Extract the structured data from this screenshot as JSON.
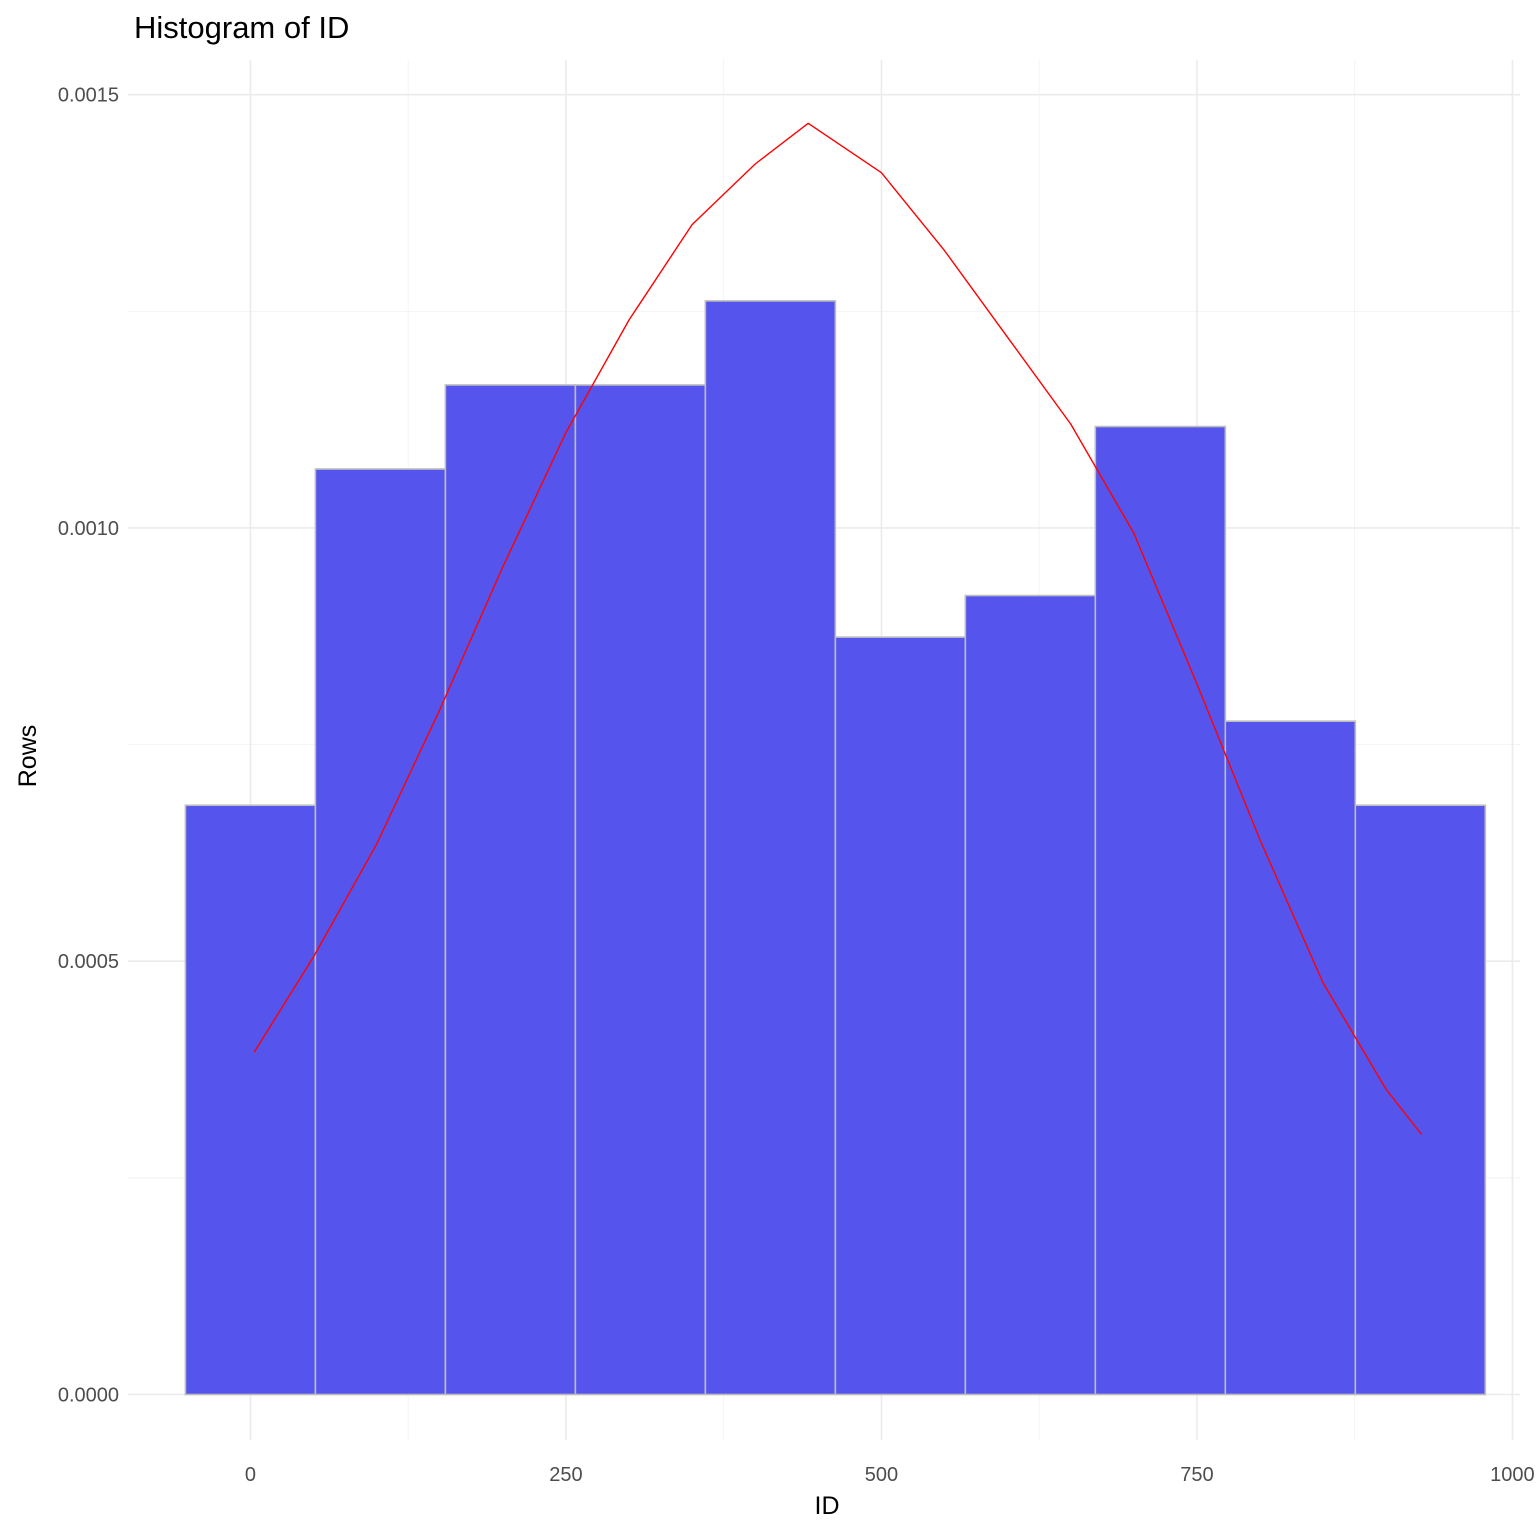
{
  "chart_data": {
    "type": "bar",
    "title": "Histogram of ID",
    "xlabel": "ID",
    "ylabel": "Rows",
    "xlim": [
      -97,
      1006
    ],
    "ylim": [
      -5.25e-05,
      0.00154
    ],
    "x_ticks": [
      0,
      250,
      500,
      750,
      1000
    ],
    "x_tick_labels": [
      "0",
      "250",
      "500",
      "750",
      "1000"
    ],
    "y_ticks": [
      0,
      0.0005,
      0.001,
      0.0015
    ],
    "y_tick_labels": [
      "0.0000",
      "0.0005",
      "0.0010",
      "0.0015"
    ],
    "grid": true,
    "bins": [
      {
        "x0": -51.5,
        "x1": 51.5,
        "density": 0.00068
      },
      {
        "x0": 51.5,
        "x1": 154.5,
        "density": 0.001068
      },
      {
        "x0": 154.5,
        "x1": 257.5,
        "density": 0.001165
      },
      {
        "x0": 257.5,
        "x1": 360.5,
        "density": 0.001165
      },
      {
        "x0": 360.5,
        "x1": 463.5,
        "density": 0.001262
      },
      {
        "x0": 463.5,
        "x1": 566.5,
        "density": 0.000874
      },
      {
        "x0": 566.5,
        "x1": 669.5,
        "density": 0.000922
      },
      {
        "x0": 669.5,
        "x1": 772.5,
        "density": 0.001117
      },
      {
        "x0": 772.5,
        "x1": 875.5,
        "density": 0.000777
      },
      {
        "x0": 875.5,
        "x1": 978.5,
        "density": 0.00068
      }
    ],
    "density_curve": {
      "x": [
        3,
        50,
        100,
        150,
        200,
        250,
        300,
        350,
        400,
        442,
        500,
        550,
        600,
        650,
        700,
        750,
        800,
        850,
        900,
        928
      ],
      "y": [
        0.000395,
        0.000505,
        0.000635,
        0.00079,
        0.000955,
        0.00111,
        0.00124,
        0.00135,
        0.00142,
        0.001467,
        0.00141,
        0.00132,
        0.00122,
        0.00112,
        0.000994,
        0.00082,
        0.00064,
        0.000475,
        0.000352,
        0.0003
      ]
    },
    "colors": {
      "bar_fill": "#5555ee",
      "bar_outline": "#bdbdbd",
      "curve": "#ff0000"
    }
  }
}
